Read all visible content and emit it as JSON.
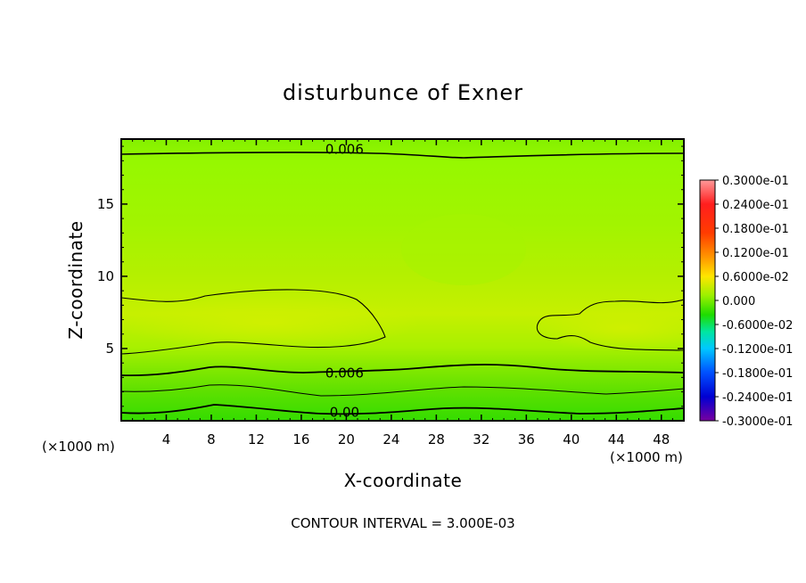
{
  "chart_data": {
    "type": "heatmap",
    "title": "disturbunce of Exner",
    "xlabel": "X-coordinate",
    "ylabel": "Z-coordinate",
    "x_unit_left": "(×1000 m)",
    "x_unit_right": "(×1000 m)",
    "xlim": [
      0,
      50
    ],
    "ylim": [
      0,
      19.5
    ],
    "x_ticks": [
      4,
      8,
      12,
      16,
      20,
      24,
      28,
      32,
      36,
      40,
      44,
      48
    ],
    "y_ticks": [
      5,
      10,
      15
    ],
    "colorbar": {
      "labels": [
        "0.3000e-01",
        "0.2400e-01",
        "0.1800e-01",
        "0.1200e-01",
        "0.6000e-02",
        "0.000",
        "-0.6000e-02",
        "-0.1200e-01",
        "-0.1800e-01",
        "-0.2400e-01",
        "-0.3000e-01"
      ],
      "values": [
        0.03,
        0.024,
        0.018,
        0.012,
        0.006,
        0.0,
        -0.006,
        -0.012,
        -0.018,
        -0.024,
        -0.03
      ],
      "colors": [
        "#ff8c8c",
        "#ff1e1e",
        "#ff6400",
        "#ffd200",
        "#c8f000",
        "#32dc00",
        "#00e6b4",
        "#0096ff",
        "#0032ff",
        "#0000d2",
        "#6400a0"
      ]
    },
    "contour_labels": [
      {
        "text": "0.006",
        "x": 20,
        "z": 18.8
      },
      {
        "text": "0.006",
        "x": 20,
        "z": 3.3
      },
      {
        "text": "0.00",
        "x": 20,
        "z": 0.6
      }
    ],
    "contour_interval_text": "CONTOUR INTERVAL = 3.000E-03"
  }
}
